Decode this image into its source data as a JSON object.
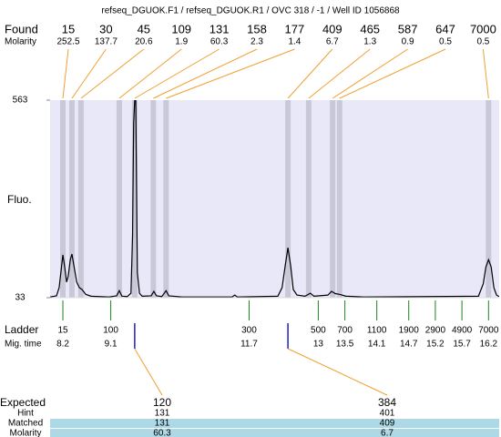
{
  "chart_data": {
    "type": "electropherogram",
    "title": "refseq_DGUOK.F1 / refseq_DGUOK.R1 / OVC 318 / -1 / Well ID 1056868",
    "y_label": "Fluo.",
    "ylim": [
      33,
      563
    ],
    "yticks": [
      33,
      563
    ],
    "xlim": [
      7.96,
      16.4
    ],
    "x": [
      7.96,
      8.08,
      8.13,
      8.17,
      8.2,
      8.23,
      8.27,
      8.3,
      8.34,
      8.37,
      8.4,
      8.46,
      8.51,
      8.56,
      8.63,
      8.73,
      9.07,
      9.21,
      9.26,
      9.31,
      9.41,
      9.48,
      9.51,
      9.53,
      9.55,
      9.57,
      9.58,
      9.6,
      9.64,
      9.69,
      9.86,
      9.91,
      9.96,
      10.06,
      10.14,
      10.19,
      10.44,
      11.38,
      11.43,
      11.48,
      12.24,
      12.32,
      12.38,
      12.43,
      12.48,
      12.53,
      12.6,
      12.75,
      12.85,
      12.92,
      13.18,
      13.25,
      13.32,
      13.4,
      13.52,
      13.86,
      16.01,
      16.1,
      16.15,
      16.2,
      16.25,
      16.3,
      16.35,
      16.4
    ],
    "values": [
      35,
      38,
      60,
      110,
      148,
      120,
      75,
      90,
      135,
      150,
      125,
      75,
      60,
      55,
      42,
      37,
      35,
      38,
      52,
      37,
      36,
      45,
      200,
      500,
      563,
      563,
      400,
      100,
      45,
      37,
      38,
      50,
      38,
      36,
      52,
      38,
      35,
      35,
      40,
      35,
      37,
      60,
      120,
      167,
      120,
      55,
      40,
      37,
      45,
      37,
      40,
      50,
      44,
      42,
      37,
      35,
      37,
      70,
      115,
      135,
      115,
      60,
      40,
      36
    ],
    "color": "#000000",
    "found": {
      "label": "Found",
      "molarity_label": "Molarity",
      "sizes": [
        15,
        30,
        45,
        109,
        131,
        158,
        177,
        409,
        465,
        587,
        647,
        7000
      ],
      "molarity": [
        252.5,
        137.7,
        20.6,
        1.9,
        60.3,
        2.3,
        1.4,
        6.7,
        1.3,
        0.9,
        0.5,
        0.5
      ],
      "times": [
        8.2,
        8.37,
        8.54,
        9.26,
        9.55,
        9.9,
        10.14,
        12.43,
        12.82,
        13.27,
        13.4,
        16.2
      ]
    },
    "ladder": {
      "label": "Ladder",
      "time_label": "Mig. time",
      "sizes": [
        15,
        100,
        300,
        500,
        700,
        1100,
        1900,
        2900,
        4900,
        7000
      ],
      "times": [
        8.2,
        9.1,
        11.7,
        13,
        13.5,
        14.1,
        14.7,
        15.2,
        15.7,
        16.2
      ]
    },
    "expected": {
      "label": "Expected",
      "hint_label": "Hint",
      "matched_label": "Matched",
      "molarity_label": "Molarity",
      "sizes": [
        120,
        384
      ],
      "hint": [
        131,
        401
      ],
      "matched": [
        131,
        409
      ],
      "molarity": [
        60.3,
        6.7
      ],
      "times": [
        9.55,
        12.43
      ]
    }
  }
}
